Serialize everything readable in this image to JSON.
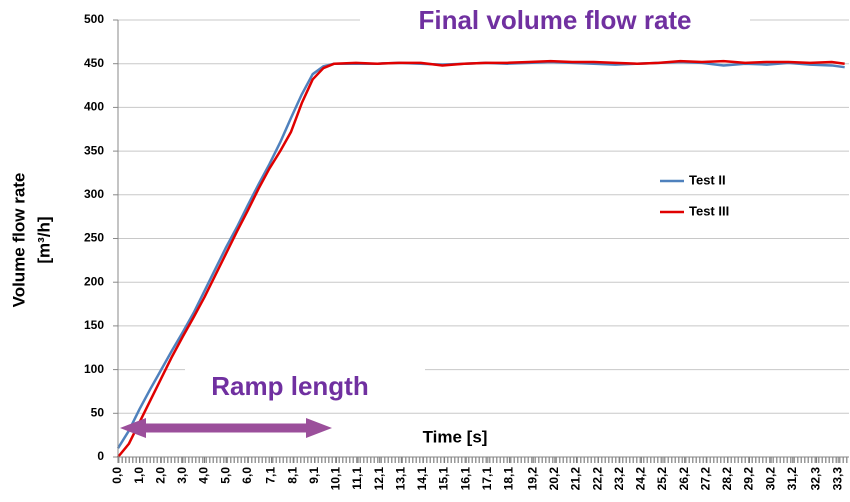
{
  "chart_data": {
    "type": "line",
    "annotations": [
      "Final volume flow rate",
      "Ramp length"
    ],
    "xlabel": "Time [s]",
    "ylabel": [
      "Volume flow rate",
      "[m³/h]"
    ],
    "xlim": [
      0,
      33.8
    ],
    "ylim": [
      0,
      500
    ],
    "yticks": [
      0,
      50,
      100,
      150,
      200,
      250,
      300,
      350,
      400,
      450,
      500
    ],
    "xticks": [
      {
        "value": 0,
        "label": "0,0"
      },
      {
        "value": 1,
        "label": "1,0"
      },
      {
        "value": 2,
        "label": "2,0"
      },
      {
        "value": 3,
        "label": "3,0"
      },
      {
        "value": 4,
        "label": "4,0"
      },
      {
        "value": 5,
        "label": "5,0"
      },
      {
        "value": 6,
        "label": "6,0"
      },
      {
        "value": 7.1,
        "label": "7,1"
      },
      {
        "value": 8.1,
        "label": "8,1"
      },
      {
        "value": 9.1,
        "label": "9,1"
      },
      {
        "value": 10.1,
        "label": "10,1"
      },
      {
        "value": 11.1,
        "label": "11,1"
      },
      {
        "value": 12.1,
        "label": "12,1"
      },
      {
        "value": 13.1,
        "label": "13,1"
      },
      {
        "value": 14.1,
        "label": "14,1"
      },
      {
        "value": 15.1,
        "label": "15,1"
      },
      {
        "value": 16.1,
        "label": "16,1"
      },
      {
        "value": 17.1,
        "label": "17,1"
      },
      {
        "value": 18.1,
        "label": "18,1"
      },
      {
        "value": 19.2,
        "label": "19,2"
      },
      {
        "value": 20.2,
        "label": "20,2"
      },
      {
        "value": 21.2,
        "label": "21,2"
      },
      {
        "value": 22.2,
        "label": "22,2"
      },
      {
        "value": 23.2,
        "label": "23,2"
      },
      {
        "value": 24.2,
        "label": "24,2"
      },
      {
        "value": 25.2,
        "label": "25,2"
      },
      {
        "value": 26.2,
        "label": "26,2"
      },
      {
        "value": 27.2,
        "label": "27,2"
      },
      {
        "value": 28.2,
        "label": "28,2"
      },
      {
        "value": 29.2,
        "label": "29,2"
      },
      {
        "value": 30.2,
        "label": "30,2"
      },
      {
        "value": 31.2,
        "label": "31,2"
      },
      {
        "value": 32.3,
        "label": "32,3"
      },
      {
        "value": 33.3,
        "label": "33,3"
      }
    ],
    "grid": true,
    "legend": "right",
    "series": [
      {
        "name": "Test II",
        "color": "#4f81bd",
        "x": [
          0,
          0.5,
          1,
          1.5,
          2,
          2.5,
          3,
          3.5,
          4,
          4.5,
          5,
          5.5,
          6,
          6.5,
          7,
          7.5,
          8,
          8.5,
          9,
          9.5,
          10,
          11,
          12,
          13,
          14,
          15,
          16,
          17,
          18,
          19,
          20,
          21,
          22,
          23,
          24,
          25,
          26,
          27,
          28,
          29,
          30,
          31,
          32,
          33,
          33.6
        ],
        "values": [
          10,
          30,
          55,
          78,
          100,
          122,
          143,
          165,
          190,
          215,
          240,
          263,
          288,
          312,
          335,
          360,
          388,
          415,
          438,
          447,
          450,
          450,
          450,
          451,
          450,
          449,
          450,
          451,
          450,
          451,
          452,
          451,
          450,
          449,
          450,
          451,
          452,
          451,
          448,
          450,
          449,
          451,
          449,
          448,
          446
        ]
      },
      {
        "name": "Test III",
        "color": "#e00000",
        "x": [
          0,
          0.5,
          1,
          1.5,
          2,
          2.5,
          3,
          3.5,
          4,
          4.5,
          5,
          5.5,
          6,
          6.5,
          7,
          7.5,
          8,
          8.5,
          9,
          9.5,
          10,
          11,
          12,
          13,
          14,
          15,
          16,
          17,
          18,
          19,
          20,
          21,
          22,
          23,
          24,
          25,
          26,
          27,
          28,
          29,
          30,
          31,
          32,
          33,
          33.6
        ],
        "values": [
          0,
          15,
          40,
          65,
          90,
          115,
          138,
          160,
          183,
          208,
          233,
          258,
          282,
          307,
          330,
          350,
          372,
          405,
          432,
          445,
          450,
          451,
          450,
          451,
          451,
          448,
          450,
          451,
          451,
          452,
          453,
          452,
          452,
          451,
          450,
          451,
          453,
          452,
          453,
          451,
          452,
          452,
          451,
          452,
          450
        ]
      }
    ]
  }
}
